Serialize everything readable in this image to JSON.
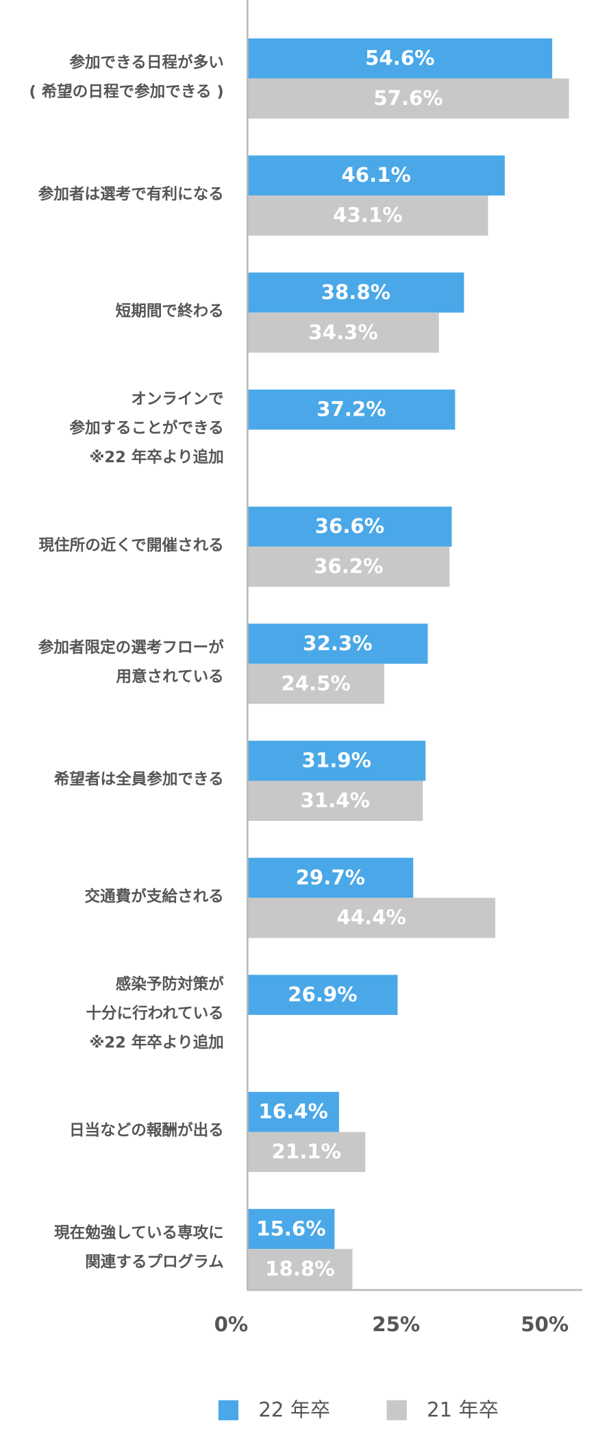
{
  "chart_data": {
    "type": "hbar",
    "categories": [
      [
        "参加できる日程が多い",
        "( 希望の日程で参加できる )"
      ],
      [
        "参加者は選考で有利になる"
      ],
      [
        "短期間で終わる"
      ],
      [
        "オンラインで",
        "参加することができる",
        "※22 年卒より追加"
      ],
      [
        "現住所の近くで開催される"
      ],
      [
        "参加者限定の選考フローが",
        "用意されている"
      ],
      [
        "希望者は全員参加できる"
      ],
      [
        "交通費が支給される"
      ],
      [
        "感染予防対策が",
        "十分に行われている",
        "※22 年卒より追加"
      ],
      [
        "日当などの報酬が出る"
      ],
      [
        "現在勉強している専攻に",
        "関連するプログラム"
      ]
    ],
    "series": [
      {
        "name": "22 年卒",
        "color": "#4aa8e8",
        "values": [
          54.6,
          46.1,
          38.8,
          37.2,
          36.6,
          32.3,
          31.9,
          29.7,
          26.9,
          16.4,
          15.6
        ],
        "value_labels": [
          "54.6%",
          "46.1%",
          "38.8%",
          "37.2%",
          "36.6%",
          "32.3%",
          "31.9%",
          "29.7%",
          "26.9%",
          "16.4%",
          "15.6%"
        ]
      },
      {
        "name": "21 年卒",
        "color": "#c8c8c8",
        "values": [
          57.6,
          43.1,
          34.3,
          null,
          36.2,
          24.5,
          31.4,
          44.4,
          null,
          21.1,
          18.8
        ],
        "value_labels": [
          "57.6%",
          "43.1%",
          "34.3%",
          null,
          "36.2%",
          "24.5%",
          "31.4%",
          "44.4%",
          null,
          "21.1%",
          "18.8%"
        ]
      }
    ],
    "xlim": [
      0,
      60
    ],
    "xticks": [
      {
        "value": 0,
        "label": "0%"
      },
      {
        "value": 25,
        "label": "25%"
      },
      {
        "value": 50,
        "label": "50%"
      }
    ],
    "legend": "bottom"
  }
}
